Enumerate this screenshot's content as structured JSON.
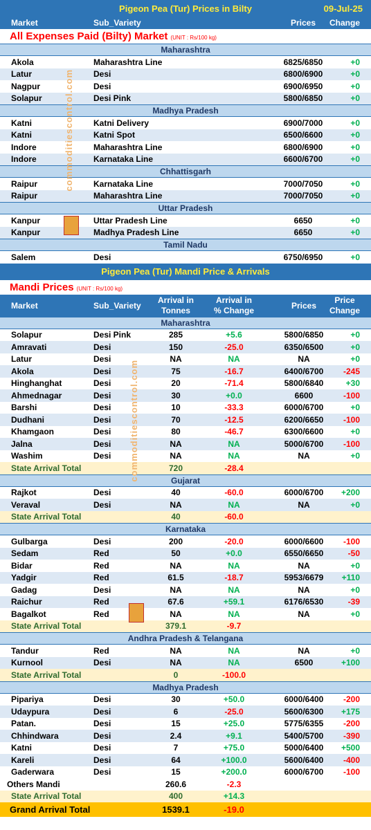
{
  "bilty": {
    "title": "Pigeon Pea (Tur) Prices in Bilty",
    "date": "09-Jul-25",
    "headers": {
      "market": "Market",
      "sub": "Sub_Variety",
      "prices": "Prices",
      "change": "Change"
    },
    "section_title": "All Expenses Paid (Bilty) Market",
    "unit": "(UNIT : Rs/100 kg)",
    "groups": [
      {
        "state": "Maharashtra",
        "rows": [
          {
            "market": "Akola",
            "sub": "Maharashtra Line",
            "price": "6825/6850",
            "change": "+0"
          },
          {
            "market": "Latur",
            "sub": "Desi",
            "price": "6800/6900",
            "change": "+0"
          },
          {
            "market": "Nagpur",
            "sub": "Desi",
            "price": "6900/6950",
            "change": "+0"
          },
          {
            "market": "Solapur",
            "sub": "Desi Pink",
            "price": "5800/6850",
            "change": "+0"
          }
        ]
      },
      {
        "state": "Madhya Pradesh",
        "rows": [
          {
            "market": "Katni",
            "sub": "Katni Delivery",
            "price": "6900/7000",
            "change": "+0"
          },
          {
            "market": "Katni",
            "sub": "Katni Spot",
            "price": "6500/6600",
            "change": "+0"
          },
          {
            "market": "Indore",
            "sub": "Maharashtra Line",
            "price": "6800/6900",
            "change": "+0"
          },
          {
            "market": "Indore",
            "sub": "Karnataka Line",
            "price": "6600/6700",
            "change": "+0"
          }
        ]
      },
      {
        "state": "Chhattisgarh",
        "rows": [
          {
            "market": "Raipur",
            "sub": "Karnataka Line",
            "price": "7000/7050",
            "change": "+0"
          },
          {
            "market": "Raipur",
            "sub": "Maharashtra Line",
            "price": "7000/7050",
            "change": "+0"
          }
        ]
      },
      {
        "state": "Uttar Pradesh",
        "rows": [
          {
            "market": "Kanpur",
            "sub": "Uttar Pradesh Line",
            "price": "6650",
            "change": "+0"
          },
          {
            "market": "Kanpur",
            "sub": "Madhya Pradesh Line",
            "price": "6650",
            "change": "+0"
          }
        ]
      },
      {
        "state": "Tamil Nadu",
        "rows": [
          {
            "market": "Salem",
            "sub": "Desi",
            "price": "6750/6950",
            "change": "+0"
          }
        ]
      }
    ]
  },
  "mandi": {
    "title": "Pigeon Pea (Tur) Mandi Price & Arrivals",
    "section_title": "Mandi Prices",
    "unit": "(UNIT : Rs/100 kg)",
    "headers": {
      "market": "Market",
      "sub": "Sub_Variety",
      "arrival_1": "Arrival in",
      "arrival_2": "Tonnes",
      "pct_1": "Arrival  in",
      "pct_2": "% Change",
      "prices": "Prices",
      "change_1": "Price",
      "change_2": "Change"
    },
    "groups": [
      {
        "state": "Maharashtra",
        "rows": [
          {
            "market": "Solapur",
            "sub": "Desi Pink",
            "arrival": "285",
            "pct": "+5.6",
            "price": "5800/6850",
            "change": "+0"
          },
          {
            "market": "Amravati",
            "sub": "Desi",
            "arrival": "150",
            "pct": "-25.0",
            "price": "6350/6500",
            "change": "+0"
          },
          {
            "market": "Latur",
            "sub": "Desi",
            "arrival": "NA",
            "pct": "NA",
            "price": "NA",
            "change": "+0"
          },
          {
            "market": "Akola",
            "sub": "Desi",
            "arrival": "75",
            "pct": "-16.7",
            "price": "6400/6700",
            "change": "-245"
          },
          {
            "market": "Hinghanghat",
            "sub": "Desi",
            "arrival": "20",
            "pct": "-71.4",
            "price": "5800/6840",
            "change": "+30"
          },
          {
            "market": "Ahmednagar",
            "sub": "Desi",
            "arrival": "30",
            "pct": "+0.0",
            "price": "6600",
            "change": "-100"
          },
          {
            "market": "Barshi",
            "sub": "Desi",
            "arrival": "10",
            "pct": "-33.3",
            "price": "6000/6700",
            "change": "+0"
          },
          {
            "market": "Dudhani",
            "sub": "Desi",
            "arrival": "70",
            "pct": "-12.5",
            "price": "6200/6650",
            "change": "-100"
          },
          {
            "market": "Khamgaon",
            "sub": "Desi",
            "arrival": "80",
            "pct": "-46.7",
            "price": "6300/6600",
            "change": "+0"
          },
          {
            "market": "Jalna",
            "sub": "Desi",
            "arrival": "NA",
            "pct": "NA",
            "price": "5000/6700",
            "change": "-100"
          },
          {
            "market": "Washim",
            "sub": "Desi",
            "arrival": "NA",
            "pct": "NA",
            "price": "NA",
            "change": "+0"
          }
        ],
        "total": {
          "label": "State Arrival Total",
          "arrival": "720",
          "pct": "-28.4"
        }
      },
      {
        "state": "Gujarat",
        "rows": [
          {
            "market": "Rajkot",
            "sub": "Desi",
            "arrival": "40",
            "pct": "-60.0",
            "price": "6000/6700",
            "change": "+200"
          },
          {
            "market": "Veraval",
            "sub": "Desi",
            "arrival": "NA",
            "pct": "NA",
            "price": "NA",
            "change": "+0"
          }
        ],
        "total": {
          "label": "State Arrival Total",
          "arrival": "40",
          "pct": "-60.0"
        }
      },
      {
        "state": "Karnataka",
        "rows": [
          {
            "market": "Gulbarga",
            "sub": "Desi",
            "arrival": "200",
            "pct": "-20.0",
            "price": "6000/6600",
            "change": "-100"
          },
          {
            "market": "Sedam",
            "sub": "Red",
            "arrival": "50",
            "pct": "+0.0",
            "price": "6550/6650",
            "change": "-50"
          },
          {
            "market": "Bidar",
            "sub": "Red",
            "arrival": "NA",
            "pct": "NA",
            "price": "NA",
            "change": "+0"
          },
          {
            "market": "Yadgir",
            "sub": "Red",
            "arrival": "61.5",
            "pct": "-18.7",
            "price": "5953/6679",
            "change": "+110"
          },
          {
            "market": "Gadag",
            "sub": "Desi",
            "arrival": "NA",
            "pct": "NA",
            "price": "NA",
            "change": "+0"
          },
          {
            "market": "Raichur",
            "sub": "Red",
            "arrival": "67.6",
            "pct": "+59.1",
            "price": "6176/6530",
            "change": "-39"
          },
          {
            "market": "Bagalkot",
            "sub": "Red",
            "arrival": "NA",
            "pct": "NA",
            "price": "NA",
            "change": "+0"
          }
        ],
        "total": {
          "label": "State Arrival Total",
          "arrival": "379.1",
          "pct": "-9.7"
        }
      },
      {
        "state": "Andhra Pradesh & Telangana",
        "rows": [
          {
            "market": "Tandur",
            "sub": "Red",
            "arrival": "NA",
            "pct": "NA",
            "price": "NA",
            "change": "+0"
          },
          {
            "market": "Kurnool",
            "sub": "Desi",
            "arrival": "NA",
            "pct": "NA",
            "price": "6500",
            "change": "+100"
          }
        ],
        "total": {
          "label": "State Arrival Total",
          "arrival": "0",
          "pct": "-100.0"
        }
      },
      {
        "state": "Madhya Pradesh",
        "rows": [
          {
            "market": "Pipariya",
            "sub": "Desi",
            "arrival": "30",
            "pct": "+50.0",
            "price": "6000/6400",
            "change": "-200"
          },
          {
            "market": "Udaypura",
            "sub": "Desi",
            "arrival": "6",
            "pct": "-25.0",
            "price": "5600/6300",
            "change": "+175"
          },
          {
            "market": "Patan.",
            "sub": "Desi",
            "arrival": "15",
            "pct": "+25.0",
            "price": "5775/6355",
            "change": "-200"
          },
          {
            "market": "Chhindwara",
            "sub": "Desi",
            "arrival": "2.4",
            "pct": "+9.1",
            "price": "5400/5700",
            "change": "-390"
          },
          {
            "market": "Katni",
            "sub": "Desi",
            "arrival": "7",
            "pct": "+75.0",
            "price": "5000/6400",
            "change": "+500"
          },
          {
            "market": "Kareli",
            "sub": "Desi",
            "arrival": "64",
            "pct": "+100.0",
            "price": "5600/6400",
            "change": "-400"
          },
          {
            "market": "Gaderwara",
            "sub": "Desi",
            "arrival": "15",
            "pct": "+200.0",
            "price": "6000/6700",
            "change": "-100"
          }
        ],
        "others": {
          "label": "Others Mandi",
          "arrival": "260.6",
          "pct": "-2.3"
        },
        "total": {
          "label": "State Arrival Total",
          "arrival": "400",
          "pct": "+14.3"
        }
      }
    ],
    "grand_total": {
      "label": "Grand Arrival Total",
      "arrival": "1539.1",
      "pct": "-19.0"
    }
  },
  "watermark": "commoditiescontrol.com",
  "colors": {
    "header_bg": "#2e75b6",
    "title_yellow": "#ffeb3b",
    "state_bg": "#bdd7ee",
    "alt_row": "#dde8f4",
    "total_bg": "#fff2cc",
    "grand_bg": "#ffc000",
    "positive": "#00b050",
    "negative": "#ff0000"
  }
}
